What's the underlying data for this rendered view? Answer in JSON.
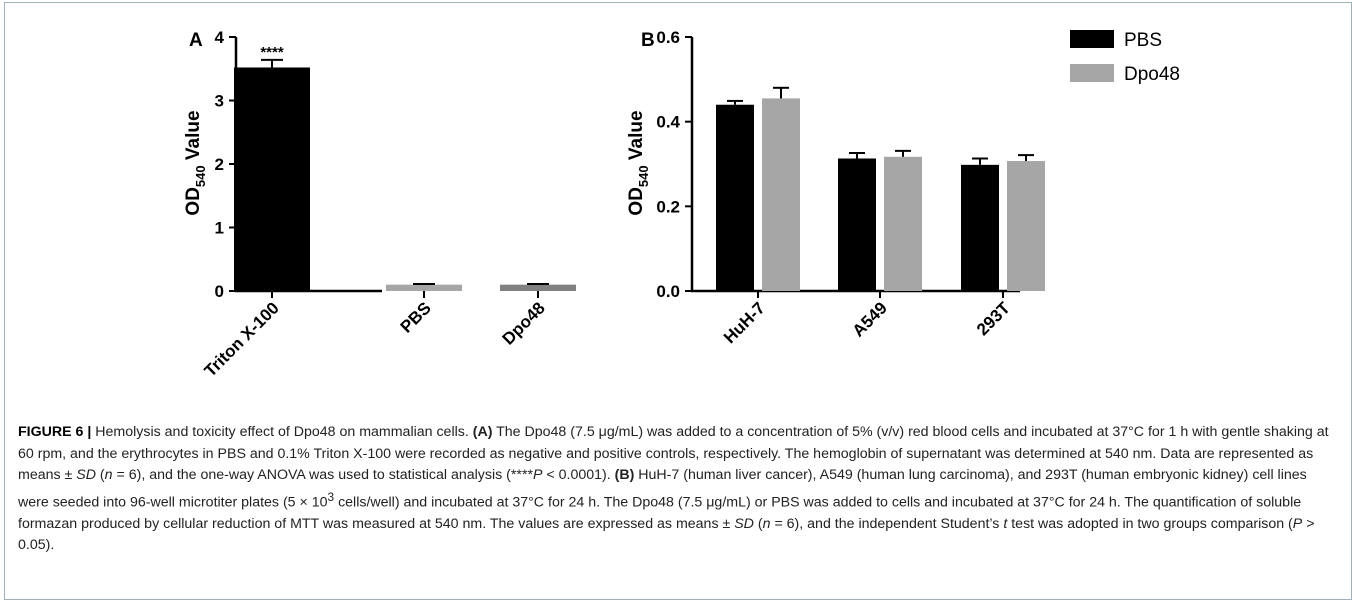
{
  "chart_data": [
    {
      "type": "bar",
      "panel_label": "A",
      "categories": [
        "Triton X-100",
        "PBS",
        "Dpo48"
      ],
      "values": [
        3.52,
        0.1,
        0.1
      ],
      "errors": [
        0.12,
        0.01,
        0.01
      ],
      "bar_colors": [
        "#000000",
        "#a6a6a6",
        "#808080"
      ],
      "annotations": [
        "****",
        "",
        ""
      ],
      "ylabel": {
        "main": "OD",
        "sub": "540",
        "rest": " Value"
      },
      "ylim": [
        0,
        4
      ],
      "yticks": [
        "0",
        "1",
        "2",
        "3",
        "4"
      ]
    },
    {
      "type": "bar",
      "panel_label": "B",
      "categories": [
        "HuH-7",
        "A549",
        "293T"
      ],
      "series": [
        {
          "name": "PBS",
          "color": "#000000",
          "values": [
            0.44,
            0.313,
            0.298
          ],
          "errors": [
            0.009,
            0.013,
            0.015
          ]
        },
        {
          "name": "Dpo48",
          "color": "#a6a6a6",
          "values": [
            0.455,
            0.317,
            0.307
          ],
          "errors": [
            0.025,
            0.014,
            0.014
          ]
        }
      ],
      "ylabel": {
        "main": "OD",
        "sub": "540",
        "rest": " Value"
      },
      "ylim": [
        0,
        0.6
      ],
      "yticks": [
        "0.0",
        "0.2",
        "0.4",
        "0.6"
      ],
      "legend_position": "top-right"
    }
  ],
  "caption": {
    "figure_label": "FIGURE 6 |",
    "title": " Hemolysis and toxicity effect of Dpo48 on mammalian cells. ",
    "ref_a": "(A)",
    "a_text_1": " The Dpo48 (7.5 μg/mL) was added to a concentration of 5% (v/v) red blood cells and incubated at 37°C for 1 h with gentle shaking at 60 rpm, and the erythrocytes in PBS and 0.1% Triton X-100 were recorded as negative and positive controls, respectively. The hemoglobin of supernatant was determined at 540 nm. Data are represented as means ± ",
    "sd_1": "SD",
    "a_text_2": " (",
    "n_1": "n",
    "a_text_3": " = 6), and the one-way ANOVA was used to statistical analysis (****",
    "p_1": "P",
    "a_text_4": " < 0.0001). ",
    "ref_b": "(B)",
    "b_text_1": " HuH-7 (human liver cancer), A549 (human lung carcinoma), and 293T (human embryonic kidney) cell lines were seeded into 96-well microtiter plates (5 × 10",
    "b_sup": "3",
    "b_text_2": " cells/well) and incubated at 37°C for 24 h. The Dpo48 (7.5 μg/mL) or PBS was added to cells and incubated at 37°C for 24 h. The quantification of soluble formazan produced by cellular reduction of MTT was measured at 540 nm. The values are expressed as means ± ",
    "sd_2": "SD",
    "b_text_3": " (",
    "n_2": "n",
    "b_text_4": " = 6), and the independent Student’s ",
    "t_ital": "t",
    "b_text_5": " test was adopted in two groups comparison (",
    "p_2": "P",
    "b_text_6": " > 0.05)."
  }
}
